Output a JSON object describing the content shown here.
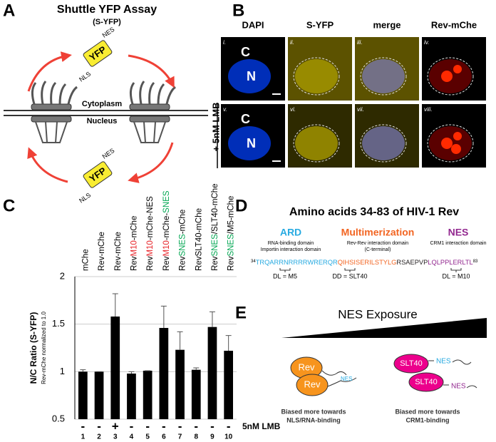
{
  "panel_labels": [
    "A",
    "B",
    "C",
    "D",
    "E"
  ],
  "panel_a": {
    "title": "Shuttle YFP Assay",
    "subtitle": "(S-YFP)",
    "protein": "YFP",
    "nes": "NES",
    "nls": "NLS",
    "cytoplasm": "Cytoplasm",
    "nucleus": "Nucleus"
  },
  "panel_b": {
    "columns": [
      "DAPI",
      "S-YFP",
      "merge",
      "Rev-mChe"
    ],
    "numerals": [
      "i.",
      "ii.",
      "iii.",
      "iv.",
      "v.",
      "vi.",
      "vii.",
      "viii."
    ],
    "cyto_label": "C",
    "nuc_label": "N",
    "row_label": "+ 5nM LMB"
  },
  "chart_data": {
    "type": "bar",
    "categories": [
      [
        {
          "text": "mChe"
        }
      ],
      [
        {
          "text": "Rev-mChe"
        }
      ],
      [
        {
          "text": "Rev-mChe"
        }
      ],
      [
        {
          "text": "Rev"
        },
        {
          "text": "M10",
          "color": "#e8262b"
        },
        {
          "text": "-mChe"
        }
      ],
      [
        {
          "text": "Rev"
        },
        {
          "text": "M10",
          "color": "#e8262b"
        },
        {
          "text": "-mChe-NES"
        }
      ],
      [
        {
          "text": "Rev"
        },
        {
          "text": "M10",
          "color": "#e8262b"
        },
        {
          "text": "-mChe-"
        },
        {
          "text": "SNES",
          "color": "#00a651"
        }
      ],
      [
        {
          "text": "Rev"
        },
        {
          "text": "SNES",
          "color": "#00a651"
        },
        {
          "text": "-mChe"
        }
      ],
      [
        {
          "text": "RevSLT40-mChe"
        }
      ],
      [
        {
          "text": "Rev"
        },
        {
          "text": "SNES",
          "color": "#00a651"
        },
        {
          "text": "/SLT40-mChe"
        }
      ],
      [
        {
          "text": "Rev"
        },
        {
          "text": "SNES",
          "color": "#00a651"
        },
        {
          "text": "/M5-mChe"
        }
      ]
    ],
    "values": [
      1.0,
      1.0,
      1.58,
      0.98,
      1.01,
      1.46,
      1.23,
      1.02,
      1.47,
      1.22
    ],
    "errors": [
      0.02,
      0.0,
      0.24,
      0.02,
      0.0,
      0.23,
      0.19,
      0.02,
      0.16,
      0.16
    ],
    "color": "#000000",
    "ylabel": "N/C Ratio (S-YFP)",
    "ylabel_sub": "Rev-mChe normalized to 1.0",
    "ylim": [
      0.5,
      2
    ],
    "yticks": [
      0.5,
      1,
      1.5,
      2
    ],
    "grid": true,
    "treatment": [
      "-",
      "-",
      "+",
      "-",
      "-",
      "-",
      "-",
      "-",
      "-",
      "-"
    ],
    "treatment_label": "5nM LMB",
    "numbers": [
      1,
      2,
      3,
      4,
      5,
      6,
      7,
      8,
      9,
      10
    ]
  },
  "panel_d": {
    "title": "Amino acids 34-83 of HIV-1 Rev",
    "domains": [
      {
        "name": "ARD",
        "lines": [
          "RNA-binding domain",
          "Importin interaction domain"
        ],
        "color": "#27aae1"
      },
      {
        "name": "Multimerization",
        "lines": [
          "Rev-Rev interaction domain",
          "(C-terminal)"
        ],
        "color": "#f26522"
      },
      {
        "name": "NES",
        "lines": [
          "CRM1 interaction domain"
        ],
        "color": "#92278f"
      }
    ],
    "start": "34",
    "end": "83",
    "sequence": [
      {
        "text": "TRQARRNRRRRWRERQR",
        "color": "#27aae1"
      },
      {
        "text": "QIHSISERILSTYLG",
        "color": "#f26522"
      },
      {
        "text": "RSAEPVP",
        "color": "#231f20"
      },
      {
        "text": "LQLPPLERLTL",
        "color": "#92278f"
      }
    ],
    "mutations": [
      "DL = M5",
      "DD = SLT40",
      "DL = M10"
    ]
  },
  "panel_e": {
    "title": "NES Exposure",
    "rev": "Rev",
    "slt40": "SLT40",
    "nes": "NES",
    "left_caption": [
      "Biased more towards",
      "NLS/RNA-binding"
    ],
    "right_caption": [
      "Biased more towards",
      "CRM1-binding"
    ]
  }
}
